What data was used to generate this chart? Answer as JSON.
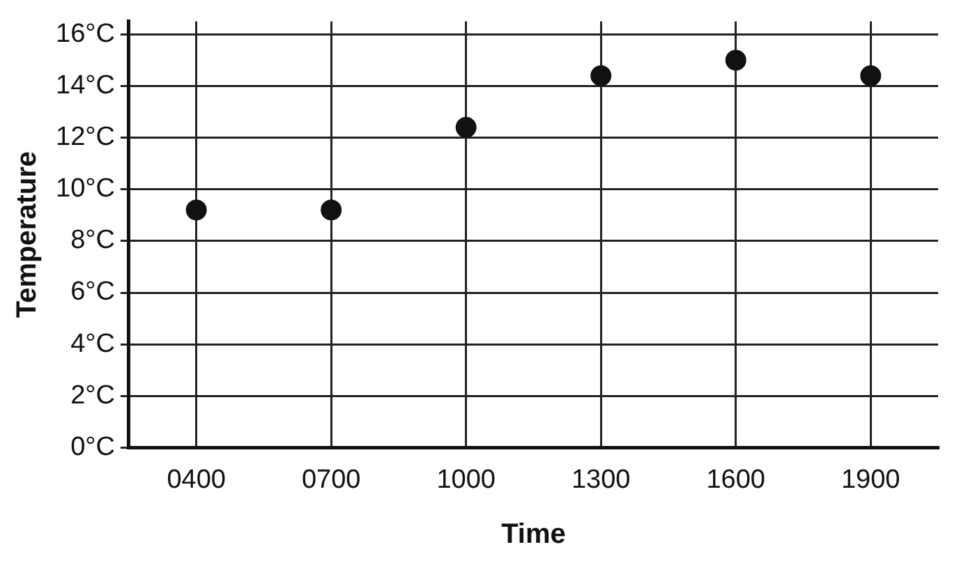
{
  "chart_data": {
    "type": "scatter",
    "xlabel": "Time",
    "ylabel": "Temperature",
    "categories": [
      "0400",
      "0700",
      "1000",
      "1300",
      "1600",
      "1900"
    ],
    "series": [
      {
        "color": "#111111",
        "values": [
          9.2,
          9.2,
          12.4,
          14.4,
          15,
          14.4
        ]
      }
    ],
    "ylim": [
      0,
      16.5
    ],
    "yticks": [
      {
        "value": 0,
        "label": "0°C"
      },
      {
        "value": 2,
        "label": "2°C"
      },
      {
        "value": 4,
        "label": "4°C"
      },
      {
        "value": 6,
        "label": "6°C"
      },
      {
        "value": 8,
        "label": "8°C"
      },
      {
        "value": 10,
        "label": "10°C"
      },
      {
        "value": 12,
        "label": "12°C"
      },
      {
        "value": 14,
        "label": "14°C"
      },
      {
        "value": 16,
        "label": "16°C"
      }
    ],
    "grid": true,
    "legend": false,
    "marker": "circle"
  }
}
